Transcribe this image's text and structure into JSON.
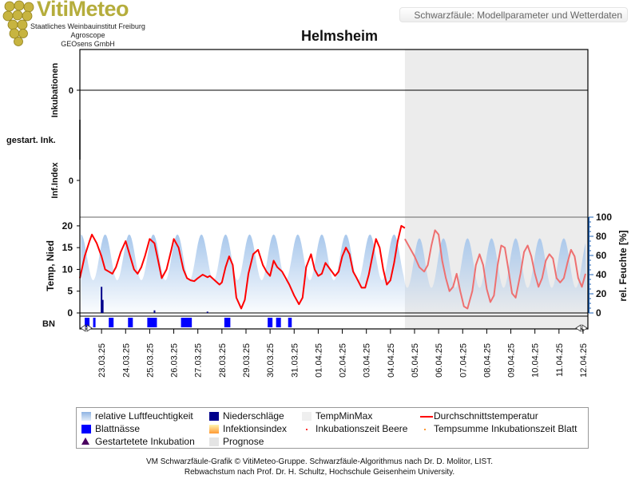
{
  "header": {
    "logo_text": "VitiMeteo",
    "org_lines": [
      "Staatliches Weinbauinstitut Freiburg",
      "Agroscope",
      "GEOsens GmbH"
    ],
    "title": "Schwarzfäule: Modellparameter und Wetterdaten"
  },
  "footer": {
    "line1": "VM Schwarzfäule-Grafik © VitiMeteo-Gruppe. Schwarzfäule-Algorithmus nach Dr. D. Molitor, LIST.",
    "line2": "Rebwachstum nach Prof. Dr. H. Schultz, Hochschule Geisenheim University."
  },
  "legend": [
    {
      "label": "relative Luftfeuchtigkeit",
      "symbol": "rh"
    },
    {
      "label": "Niederschläge",
      "symbol": "precip"
    },
    {
      "label": "TempMinMax",
      "symbol": "tempminmax"
    },
    {
      "label": "Durchschnittstemperatur",
      "symbol": "tavg"
    },
    {
      "label": "Blattnässe",
      "symbol": "leafwet"
    },
    {
      "label": "Infektionsindex",
      "symbol": "infidx"
    },
    {
      "label": "Inkubationszeit Beere",
      "symbol": "dot-red"
    },
    {
      "label": "Tempsumme Inkubationszeit Blatt",
      "symbol": "dot-orange"
    },
    {
      "label": "Gestartetete Inkubation",
      "symbol": "triangle"
    },
    {
      "label": "Prognose",
      "symbol": "prognose"
    }
  ],
  "colors": {
    "temperature": "#ff0000",
    "temperature_forecast": "#ee7070",
    "humidity": "#a9c8ec",
    "precipitation": "#00008b",
    "leaf_wetness": "#0000ff",
    "forecast_shade": "#ececec",
    "logo": "#b5ad3c"
  },
  "chart_data": {
    "type": "line",
    "title": "Helmsheim",
    "x_labels": [
      "23.03.25",
      "24.03.25",
      "25.03.25",
      "26.03.25",
      "27.03.25",
      "28.03.25",
      "29.03.25",
      "30.03.25",
      "31.03.25",
      "01.04.25",
      "02.04.25",
      "03.04.25",
      "04.04.25",
      "05.04.25",
      "06.04.25",
      "07.04.25",
      "08.04.25",
      "09.04.25",
      "10.04.25",
      "11.04.25",
      "12.04.25"
    ],
    "x_range_days": [
      -0.9,
      20.2
    ],
    "forecast_start_day": 12.6,
    "panels": [
      {
        "name": "inkubationen",
        "ylabel": "Inkubationen",
        "ticks": [
          0
        ],
        "values_constant": 0
      },
      {
        "name": "gestart",
        "ylabel": "gestart. Ink."
      },
      {
        "name": "infindex",
        "ylabel": "Inf.Index",
        "ticks": [
          0
        ]
      },
      {
        "name": "weather",
        "ylabel_left": "Temp, Nied",
        "ylabel_right": "rel. Feuchte [%]",
        "left_ticks": [
          0,
          5,
          10,
          15,
          20
        ],
        "left_ylim": [
          0,
          22
        ],
        "right_ticks": [
          0,
          20,
          40,
          60,
          80,
          100
        ],
        "right_ylim": [
          0,
          100
        ]
      }
    ],
    "leaf_wetness_label": "BN",
    "leaf_wetness_intervals": [
      [
        -0.7,
        -0.5
      ],
      [
        -0.35,
        -0.25
      ],
      [
        0.3,
        0.5
      ],
      [
        1.1,
        1.3
      ],
      [
        1.9,
        2.3
      ],
      [
        3.3,
        3.75
      ],
      [
        5.1,
        5.35
      ],
      [
        6.9,
        7.1
      ],
      [
        7.25,
        7.45
      ],
      [
        7.75,
        7.9
      ]
    ],
    "precipitation": {
      "x": [
        0.0,
        0.05,
        2.2,
        4.4
      ],
      "values": [
        6,
        3,
        0.6,
        0.3
      ]
    },
    "temperature_series": [
      {
        "name": "Durchschnittstemperatur",
        "segment": "observed",
        "x": [
          -0.9,
          -0.7,
          -0.5,
          -0.4,
          -0.2,
          0.0,
          0.15,
          0.3,
          0.45,
          0.6,
          0.8,
          1.0,
          1.2,
          1.35,
          1.5,
          1.65,
          1.8,
          2.0,
          2.2,
          2.35,
          2.5,
          2.7,
          2.9,
          3.0,
          3.2,
          3.4,
          3.55,
          3.7,
          3.85,
          4.0,
          4.2,
          4.4,
          4.5,
          4.7,
          4.9,
          5.0,
          5.15,
          5.3,
          5.45,
          5.6,
          5.8,
          5.95,
          6.1,
          6.3,
          6.5,
          6.7,
          6.85,
          7.0,
          7.15,
          7.3,
          7.5,
          7.65,
          7.8,
          8.0,
          8.2,
          8.35,
          8.5,
          8.7,
          8.85,
          9.0,
          9.15,
          9.3,
          9.5,
          9.7,
          9.85,
          10.0,
          10.15,
          10.3,
          10.45,
          10.6,
          10.8,
          10.95,
          11.1,
          11.25,
          11.4,
          11.55,
          11.7,
          11.85,
          12.0,
          12.15,
          12.3,
          12.45,
          12.6
        ],
        "y": [
          8,
          13,
          16.5,
          18,
          16,
          13,
          10,
          9.5,
          9,
          10.5,
          14,
          16.5,
          12.8,
          10,
          9,
          10.5,
          13,
          17,
          16,
          12,
          8,
          10,
          14.5,
          17,
          15,
          10,
          8,
          7.5,
          7.3,
          8,
          8.8,
          8.2,
          8.5,
          7.5,
          6.5,
          7,
          10.5,
          13,
          11,
          3.5,
          1,
          3,
          9,
          13.5,
          14.5,
          11,
          9.5,
          8.5,
          12,
          10.5,
          9.5,
          8,
          6.5,
          4,
          2,
          3.5,
          10.5,
          13.5,
          10,
          8.5,
          9,
          11.5,
          10,
          8.5,
          9.5,
          13,
          15,
          13.5,
          9.5,
          8,
          5.8,
          5.8,
          8.8,
          13,
          17,
          15,
          10,
          6.5,
          7.5,
          11.5,
          16.5,
          20,
          19.5
        ]
      },
      {
        "name": "Durchschnittstemperatur",
        "segment": "forecast",
        "x": [
          12.6,
          12.8,
          13.0,
          13.2,
          13.4,
          13.55,
          13.7,
          13.85,
          14.0,
          14.15,
          14.3,
          14.45,
          14.6,
          14.75,
          14.9,
          15.05,
          15.2,
          15.4,
          15.55,
          15.7,
          15.85,
          16.0,
          16.15,
          16.3,
          16.45,
          16.6,
          16.75,
          16.9,
          17.05,
          17.2,
          17.4,
          17.55,
          17.7,
          17.85,
          18.0,
          18.15,
          18.3,
          18.45,
          18.6,
          18.75,
          18.9,
          19.05,
          19.2,
          19.35,
          19.5,
          19.65,
          19.8,
          19.95,
          20.1
        ],
        "y": [
          17,
          15,
          13,
          10.5,
          9.5,
          11,
          15.5,
          19,
          18,
          12,
          8,
          5,
          6,
          9,
          5,
          1.5,
          1,
          5,
          11,
          13.5,
          11,
          5.5,
          2.5,
          4,
          11,
          15.5,
          15,
          10,
          4.5,
          3.5,
          9,
          14,
          15.5,
          13,
          9,
          6,
          8,
          12,
          13.5,
          12.5,
          8,
          7,
          8,
          11.5,
          14.5,
          13,
          8,
          6,
          9
        ]
      }
    ]
  }
}
